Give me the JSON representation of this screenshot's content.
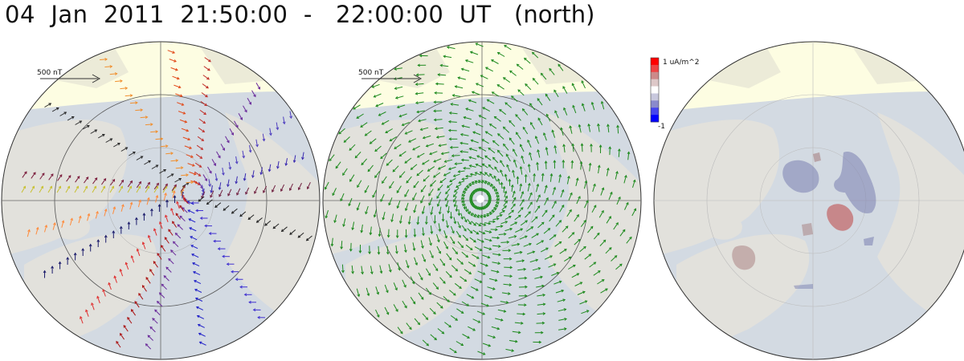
{
  "header": {
    "title": "04  Jan  2011  21:50:00  -   22:00:00  UT",
    "hemisphere": "(north)"
  },
  "panels": [
    {
      "name": "ground-magnetic-perturbation",
      "scale_label": "500 nT"
    },
    {
      "name": "equivalent-currents",
      "scale_label": "500 nT"
    },
    {
      "name": "field-aligned-currents"
    }
  ],
  "colorbar": {
    "max_label": "1 uA/m^2",
    "min_label": "-1",
    "colors": [
      "#0000ff",
      "#4444ee",
      "#8a8acc",
      "#c8c8dd",
      "#ffffff",
      "#ddc8c8",
      "#cc8a8a",
      "#ee4444",
      "#ff0000"
    ]
  },
  "colors": {
    "ocean": "#d3dae2",
    "land": "#e2e1dc",
    "daylight": "#fdfde2",
    "ice": "#dde8f3",
    "vector_green": "#1e8a1e"
  }
}
